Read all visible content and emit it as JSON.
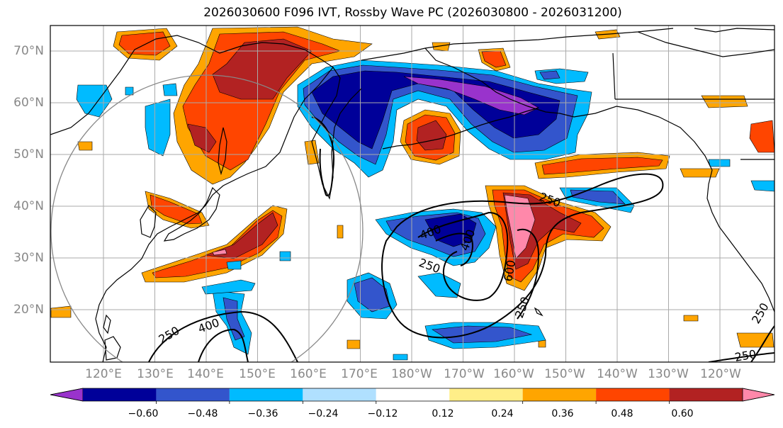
{
  "title": "2026030600 F096 IVT, Rossby Wave PC (2026030800 - 2026031200)",
  "lat_labels": [
    "70°N",
    "60°N",
    "50°N",
    "40°N",
    "30°N",
    "20°N"
  ],
  "lon_labels": [
    "120°E",
    "130°E",
    "140°E",
    "150°E",
    "160°E",
    "170°E",
    "180°W",
    "170°W",
    "160°W",
    "150°W",
    "140°W",
    "130°W",
    "120°W"
  ],
  "contour_labels": [
    "250",
    "400",
    "400",
    "250",
    "400",
    "600",
    "250",
    "250",
    "250",
    "250"
  ],
  "colorbar": {
    "colors": [
      "#9933cc",
      "#000099",
      "#3355cc",
      "#00bbff",
      "#b0e0ff",
      "#ffffff",
      "#ffee88",
      "#ffa500",
      "#ff4500",
      "#b22222",
      "#ff88aa"
    ],
    "labels": [
      "−0.60",
      "−0.48",
      "−0.36",
      "−0.24",
      "−0.12",
      "0.12",
      "0.24",
      "0.36",
      "0.48",
      "0.60"
    ]
  },
  "colors": {
    "grid": "#aaaaaa",
    "coast": "#000000",
    "contour": "#000000",
    "circle": "#888888"
  }
}
